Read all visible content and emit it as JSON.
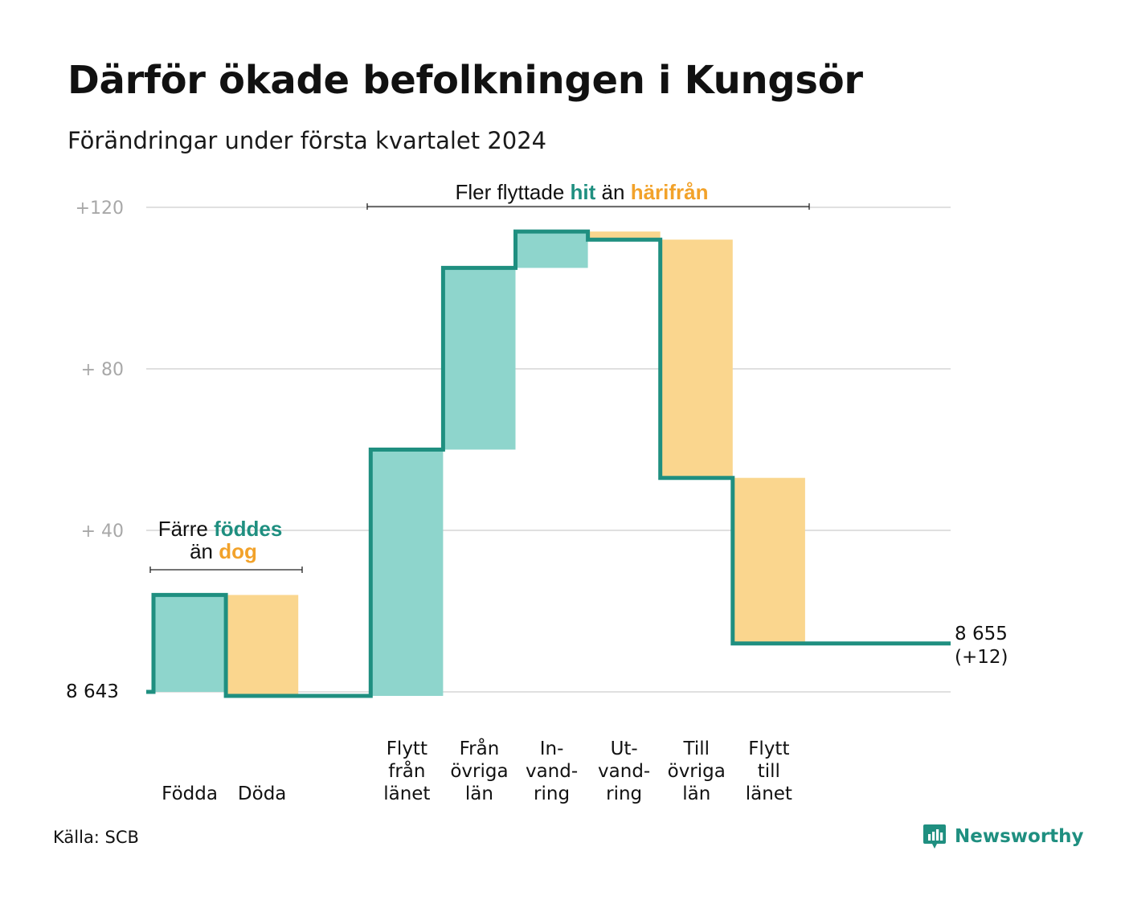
{
  "title": "Därför ökade befolkningen i Kungsör",
  "subtitle": "Förändringar under första kvartalet 2024",
  "source": "Källa: SCB",
  "brand": {
    "name": "Newsworthy",
    "icon": "bar-chart-speech-bubble-icon"
  },
  "colors": {
    "positive_fill": "#8ED5CC",
    "negative_fill": "#FAD68E",
    "line": "#1F8F80",
    "gridline": "#E0E0E0",
    "tick_text": "#A8A8A8",
    "accent_orange": "#F2A22A"
  },
  "annotations": {
    "births": {
      "line1_prefix": "Färre",
      "line1_highlight": "föddes",
      "line2_prefix": "än",
      "line2_highlight": "dog"
    },
    "migration": {
      "prefix": "Fler flyttade",
      "highlight1": "hit",
      "middle": "än",
      "highlight2": "härifrån"
    }
  },
  "chart_data": {
    "type": "waterfall",
    "title": "Därför ökade befolkningen i Kungsör",
    "subtitle": "Förändringar under första kvartalet 2024",
    "start_value": 8643,
    "start_label": "8  643",
    "end_value": 8655,
    "end_label": "8 655",
    "end_change_label": "(+12)",
    "y_ticks": [
      {
        "value": 40,
        "label": "+  40"
      },
      {
        "value": 80,
        "label": "+  80"
      },
      {
        "value": 120,
        "label": "+120"
      }
    ],
    "ylim": [
      0,
      120
    ],
    "grid": true,
    "categories": [
      {
        "label_lines": [
          "Födda"
        ],
        "value": 24
      },
      {
        "label_lines": [
          "Döda"
        ],
        "value": -25
      },
      {
        "label_lines": [
          ""
        ],
        "value": 0
      },
      {
        "label_lines": [
          "Flytt",
          "från",
          "länet"
        ],
        "value": 61
      },
      {
        "label_lines": [
          "Från",
          "övriga",
          "län"
        ],
        "value": 45
      },
      {
        "label_lines": [
          "In-",
          "vand-",
          "ring"
        ],
        "value": 9
      },
      {
        "label_lines": [
          "Ut-",
          "vand-",
          "ring"
        ],
        "value": -2
      },
      {
        "label_lines": [
          "Till",
          "övriga",
          "län"
        ],
        "value": -59
      },
      {
        "label_lines": [
          "Flytt",
          "till",
          "länet"
        ],
        "value": -41
      },
      {
        "label_lines": [
          ""
        ],
        "value": 0
      }
    ]
  }
}
